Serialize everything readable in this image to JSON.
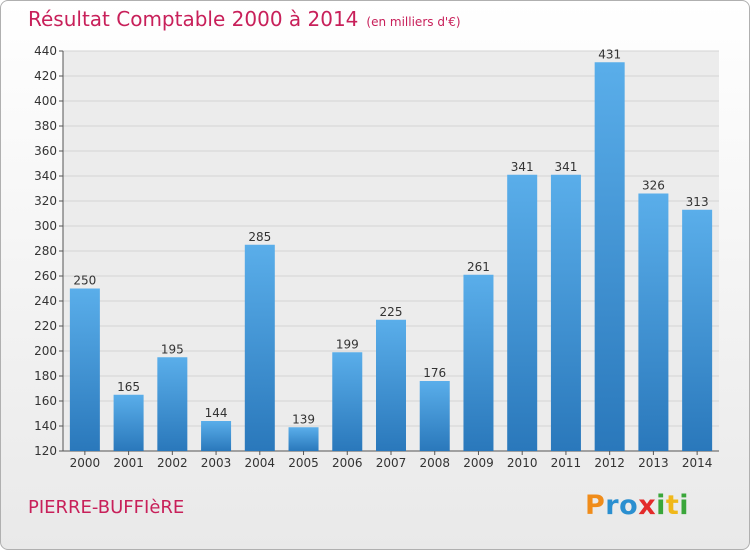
{
  "title": "Résultat Comptable 2000 à 2014",
  "subtitle": "(en milliers d'€)",
  "commune": "PIERRE-BUFFIèRE",
  "logo": {
    "letters": [
      "P",
      "r",
      "o",
      "x",
      "i",
      "t",
      "i"
    ],
    "colors": [
      "#f08c1a",
      "#2a8fd0",
      "#2a8fd0",
      "#e32a2a",
      "#3aa63a",
      "#f0b81a",
      "#3aa63a"
    ]
  },
  "colors": {
    "bar_light": "#5aaeea",
    "bar_dark": "#2a78bb",
    "accent": "#c8205a",
    "grid": "#d4d4d4"
  },
  "chart_data": {
    "type": "bar",
    "title": "Résultat Comptable 2000 à 2014",
    "unit": "en milliers d'€",
    "categories": [
      "2000",
      "2001",
      "2002",
      "2003",
      "2004",
      "2005",
      "2006",
      "2007",
      "2008",
      "2009",
      "2010",
      "2011",
      "2012",
      "2013",
      "2014"
    ],
    "values": [
      250,
      165,
      195,
      144,
      285,
      139,
      199,
      225,
      176,
      261,
      341,
      341,
      431,
      326,
      313
    ],
    "ylim": [
      120,
      440
    ],
    "yticks": [
      120,
      140,
      160,
      180,
      200,
      220,
      240,
      260,
      280,
      300,
      320,
      340,
      360,
      380,
      400,
      420,
      440
    ],
    "xlabel": "",
    "ylabel": "",
    "grid": true
  }
}
